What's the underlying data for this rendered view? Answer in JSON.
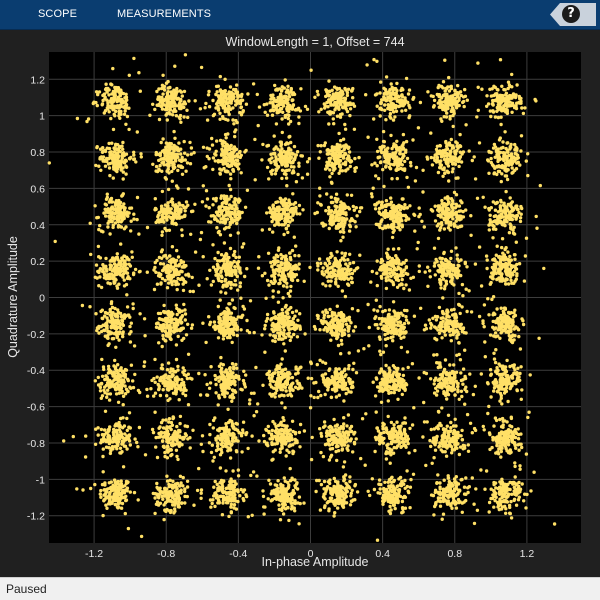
{
  "toolstrip": {
    "tabs": [
      {
        "label": "SCOPE"
      },
      {
        "label": "MEASUREMENTS"
      }
    ],
    "help": {
      "label": "?"
    }
  },
  "status": {
    "text": "Paused"
  },
  "colors": {
    "background": "#202020",
    "plot_background": "#000000",
    "grid": "#3d3d3d",
    "marker": "#ffe066",
    "text": "#e6e6e6",
    "toolstrip": "#0a3d70"
  },
  "chart_data": {
    "type": "scatter",
    "title": "WindowLength = 1, Offset = 744",
    "xlabel": "In-phase Amplitude",
    "ylabel": "Quadrature Amplitude",
    "xlim": [
      -1.45,
      1.5
    ],
    "ylim": [
      -1.35,
      1.35
    ],
    "xticks": [
      -1.2,
      -0.8,
      -0.4,
      0,
      0.4,
      0.8,
      1.2
    ],
    "xtick_labels": [
      "-1.2",
      "-0.8",
      "-0.4",
      "0",
      "0.4",
      "0.8",
      "1.2"
    ],
    "yticks": [
      -1.2,
      -1,
      -0.8,
      -0.6,
      -0.4,
      -0.2,
      0,
      0.2,
      0.4,
      0.6,
      0.8,
      1,
      1.2
    ],
    "ytick_labels": [
      "-1.2",
      "-1",
      "-0.8",
      "-0.6",
      "-0.4",
      "-0.2",
      "0",
      "0.2",
      "0.4",
      "0.6",
      "0.8",
      "1",
      "1.2"
    ],
    "grid": true,
    "constellation": {
      "modulation": "64-QAM",
      "i_levels": [
        -1.08,
        -0.77,
        -0.46,
        -0.15,
        0.15,
        0.46,
        0.77,
        1.08
      ],
      "q_levels": [
        -1.08,
        -0.77,
        -0.46,
        -0.15,
        0.15,
        0.46,
        0.77,
        1.08
      ],
      "cluster_spread": 0.045,
      "outlier_spread": 0.14
    }
  }
}
